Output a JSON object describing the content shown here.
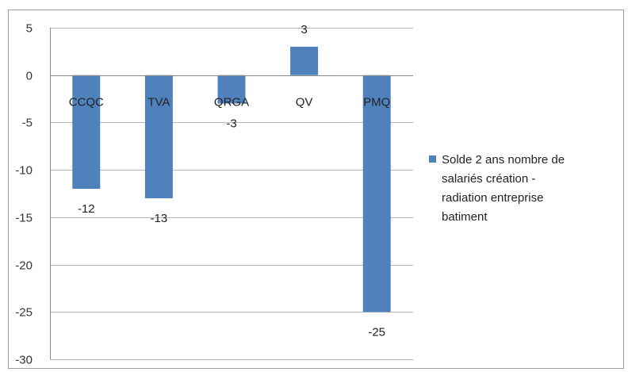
{
  "colors": {
    "bar": "#4f81bd",
    "grid": "#b7b7b7",
    "axis": "#888888",
    "frame": "#9c9c9c"
  },
  "chart_data": {
    "type": "bar",
    "title": "",
    "xlabel": "",
    "ylabel": "",
    "categories": [
      "CCQC",
      "TVA",
      "QRGA",
      "QV",
      "PMQ"
    ],
    "series": [
      {
        "name": "Solde 2 ans nombre de salariés création - radiation entreprise batiment",
        "values": [
          -12,
          -13,
          -3,
          3,
          -25
        ]
      }
    ],
    "data_labels": [
      "-12",
      "-13",
      "-3",
      "3",
      "-25"
    ],
    "ylim": [
      -30,
      5
    ],
    "yticks": [
      5,
      0,
      -5,
      -10,
      -15,
      -20,
      -25,
      -30
    ],
    "ytick_labels": [
      "5",
      "0",
      "-5",
      "-10",
      "-15",
      "-20",
      "-25",
      "-30"
    ],
    "grid": true,
    "legend_position": "right",
    "legend_lines": [
      "Solde 2 ans nombre de",
      "salariés création -",
      "radiation entreprise",
      "batiment"
    ]
  }
}
